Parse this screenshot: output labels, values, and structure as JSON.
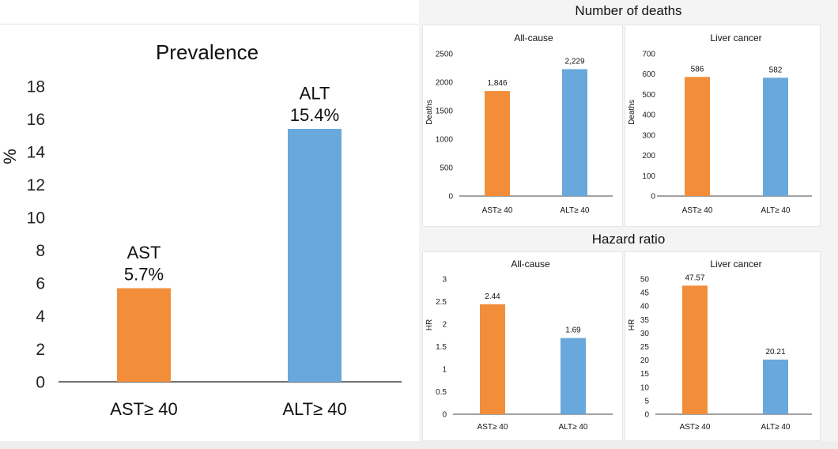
{
  "colors": {
    "ast": "#F28E3A",
    "alt": "#69A8DC",
    "axis": "#444444",
    "text": "#222222"
  },
  "chart_data": [
    {
      "id": "prevalence",
      "type": "bar",
      "title": "Prevalence",
      "ylabel": "%",
      "xlabel": "",
      "ylim": [
        0,
        18
      ],
      "yticks": [
        "0",
        "2",
        "4",
        "6",
        "8",
        "10",
        "12",
        "14",
        "16",
        "18"
      ],
      "categories": [
        "AST≥ 40",
        "ALT≥ 40"
      ],
      "values": [
        5.7,
        15.4
      ],
      "labels": [
        {
          "name": "AST",
          "value": "5.7%"
        },
        {
          "name": "ALT",
          "value": "15.4%"
        }
      ],
      "grid": false
    },
    {
      "id": "deaths-all-cause",
      "group": "Number of deaths",
      "type": "bar",
      "title": "All-cause",
      "ylabel": "Deaths",
      "ylim": [
        0,
        2500
      ],
      "yticks": [
        "0",
        "500",
        "1000",
        "1500",
        "2000",
        "2500"
      ],
      "categories": [
        "AST≥ 40",
        "ALT≥ 40"
      ],
      "values": [
        1846,
        2229
      ],
      "data_labels": [
        "1,846",
        "2,229"
      ]
    },
    {
      "id": "deaths-liver-cancer",
      "group": "Number of deaths",
      "type": "bar",
      "title": "Liver cancer",
      "ylabel": "Deaths",
      "ylim": [
        0,
        700
      ],
      "yticks": [
        "0",
        "100",
        "200",
        "300",
        "400",
        "500",
        "600",
        "700"
      ],
      "categories": [
        "AST≥ 40",
        "ALT≥ 40"
      ],
      "values": [
        586,
        582
      ],
      "data_labels": [
        "586",
        "582"
      ]
    },
    {
      "id": "hr-all-cause",
      "group": "Hazard ratio",
      "type": "bar",
      "title": "All-cause",
      "ylabel": "HR",
      "ylim": [
        0,
        3
      ],
      "yticks": [
        "0",
        "0.5",
        "1",
        "1.5",
        "2",
        "2.5",
        "3"
      ],
      "categories": [
        "AST≥ 40",
        "ALT≥ 40"
      ],
      "values": [
        2.44,
        1.69
      ],
      "data_labels": [
        "2.44",
        "1.69"
      ]
    },
    {
      "id": "hr-liver-cancer",
      "group": "Hazard ratio",
      "type": "bar",
      "title": "Liver cancer",
      "ylabel": "HR",
      "ylim": [
        0,
        50
      ],
      "yticks": [
        "0",
        "5",
        "10",
        "15",
        "20",
        "25",
        "30",
        "35",
        "40",
        "45",
        "50"
      ],
      "categories": [
        "AST≥ 40",
        "ALT≥ 40"
      ],
      "values": [
        47.57,
        20.21
      ],
      "data_labels": [
        "47.57",
        "20.21"
      ]
    }
  ],
  "headings": {
    "deaths": "Number of deaths",
    "hazard": "Hazard ratio"
  }
}
